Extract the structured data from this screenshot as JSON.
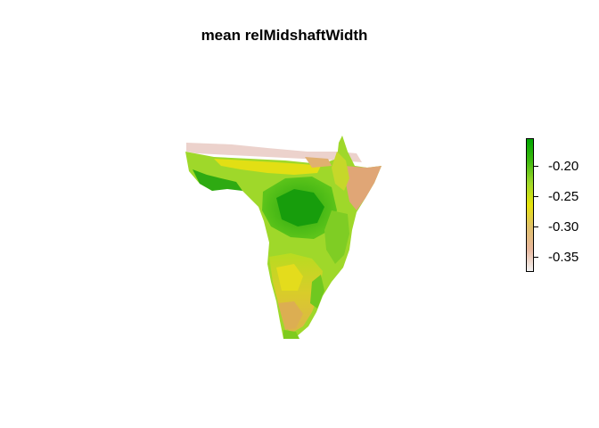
{
  "title": "mean relMidshaftWidth",
  "legend": {
    "min": -0.375,
    "max": -0.155,
    "ticks": [
      {
        "value": -0.2,
        "label": "-0.20"
      },
      {
        "value": -0.25,
        "label": "-0.25"
      },
      {
        "value": -0.3,
        "label": "-0.30"
      },
      {
        "value": -0.35,
        "label": "-0.35"
      }
    ],
    "colors": [
      "#f2f2f2",
      "#e8b79c",
      "#e0c06a",
      "#e6e30c",
      "#9fd82a",
      "#3fb90f",
      "#00a600"
    ]
  }
}
